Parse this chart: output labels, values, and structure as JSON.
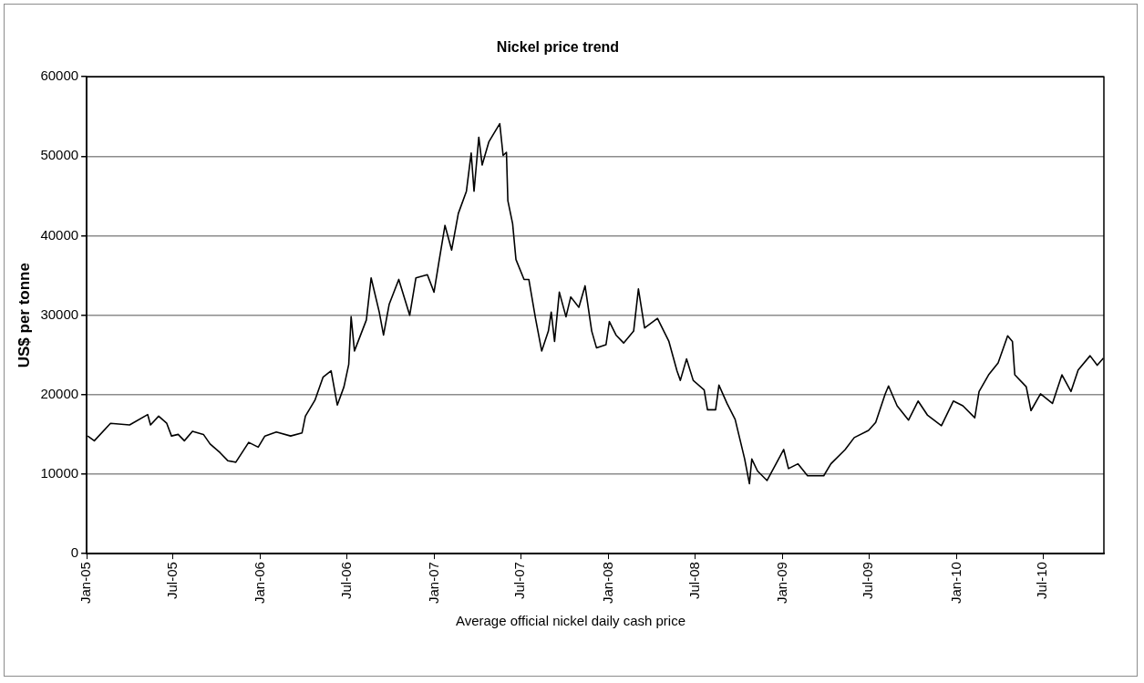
{
  "chart_data": {
    "type": "line",
    "title": "Nickel price trend",
    "ylabel": "US$ per tonne",
    "annotations": [
      "Average official nickel daily cash price"
    ],
    "xlim": [
      "2005-01-01",
      "2010-11-06"
    ],
    "xticks": [
      {
        "value": "2005-01-01",
        "label": "Jan-05"
      },
      {
        "value": "2005-07-01",
        "label": "Jul-05"
      },
      {
        "value": "2006-01-01",
        "label": "Jan-06"
      },
      {
        "value": "2006-07-01",
        "label": "Jul-06"
      },
      {
        "value": "2007-01-01",
        "label": "Jan-07"
      },
      {
        "value": "2007-07-01",
        "label": "Jul-07"
      },
      {
        "value": "2008-01-01",
        "label": "Jan-08"
      },
      {
        "value": "2008-07-01",
        "label": "Jul-08"
      },
      {
        "value": "2009-01-01",
        "label": "Jan-09"
      },
      {
        "value": "2009-07-01",
        "label": "Jul-09"
      },
      {
        "value": "2010-01-01",
        "label": "Jan-10"
      },
      {
        "value": "2010-07-01",
        "label": "Jul-10"
      }
    ],
    "ylim": [
      0,
      60000
    ],
    "yticks": [
      0,
      10000,
      20000,
      30000,
      40000,
      50000,
      60000
    ],
    "grid": "y",
    "x": [
      "2005-01-03",
      "2005-01-17",
      "2005-02-20",
      "2005-04-01",
      "2005-05-09",
      "2005-05-15",
      "2005-06-01",
      "2005-06-18",
      "2005-06-28",
      "2005-07-12",
      "2005-07-25",
      "2005-08-11",
      "2005-09-03",
      "2005-09-17",
      "2005-10-08",
      "2005-10-24",
      "2005-11-10",
      "2005-12-07",
      "2005-12-27",
      "2006-01-10",
      "2006-02-03",
      "2006-03-05",
      "2006-03-29",
      "2006-04-05",
      "2006-04-25",
      "2006-05-12",
      "2006-05-29",
      "2006-06-11",
      "2006-06-25",
      "2006-07-05",
      "2006-07-10",
      "2006-07-17",
      "2006-08-11",
      "2006-08-21",
      "2006-09-07",
      "2006-09-16",
      "2006-09-28",
      "2006-10-18",
      "2006-11-10",
      "2006-11-23",
      "2006-12-17",
      "2006-12-31",
      "2007-01-10",
      "2007-01-23",
      "2007-02-06",
      "2007-02-20",
      "2007-03-09",
      "2007-03-19",
      "2007-03-25",
      "2007-04-04",
      "2007-04-11",
      "2007-04-25",
      "2007-05-05",
      "2007-05-18",
      "2007-05-25",
      "2007-06-01",
      "2007-06-04",
      "2007-06-14",
      "2007-06-21",
      "2007-07-08",
      "2007-07-18",
      "2007-08-01",
      "2007-08-14",
      "2007-08-28",
      "2007-09-03",
      "2007-09-10",
      "2007-09-20",
      "2007-10-04",
      "2007-10-14",
      "2007-10-31",
      "2007-11-13",
      "2007-11-27",
      "2007-12-07",
      "2007-12-27",
      "2008-01-03",
      "2008-01-17",
      "2008-02-02",
      "2008-02-23",
      "2008-03-04",
      "2008-03-17",
      "2008-04-13",
      "2008-05-07",
      "2008-05-24",
      "2008-05-31",
      "2008-06-13",
      "2008-06-27",
      "2008-07-20",
      "2008-07-27",
      "2008-08-13",
      "2008-08-20",
      "2008-09-06",
      "2008-09-23",
      "2008-10-13",
      "2008-10-23",
      "2008-10-28",
      "2008-11-09",
      "2008-11-29",
      "2009-01-03",
      "2009-01-13",
      "2009-02-02",
      "2009-02-22",
      "2009-03-28",
      "2009-04-12",
      "2009-05-12",
      "2009-05-31",
      "2009-06-30",
      "2009-07-15",
      "2009-08-04",
      "2009-08-11",
      "2009-08-29",
      "2009-09-22",
      "2009-10-12",
      "2009-11-01",
      "2009-11-30",
      "2009-12-25",
      "2010-01-14",
      "2010-02-08",
      "2010-02-17",
      "2010-03-09",
      "2010-03-29",
      "2010-04-18",
      "2010-04-28",
      "2010-05-03",
      "2010-05-27",
      "2010-06-06",
      "2010-06-26",
      "2010-07-21",
      "2010-08-10",
      "2010-08-29",
      "2010-09-13",
      "2010-10-08",
      "2010-10-23",
      "2010-11-05"
    ],
    "series": [
      {
        "color": "#000000",
        "values": [
          14800,
          14200,
          16400,
          16200,
          17500,
          16200,
          17300,
          16400,
          14800,
          15000,
          14200,
          15400,
          15000,
          13800,
          12700,
          11700,
          11500,
          14000,
          13400,
          14800,
          15300,
          14800,
          15200,
          17300,
          19300,
          22200,
          23000,
          18700,
          21000,
          23800,
          29800,
          25500,
          29400,
          34700,
          30400,
          27500,
          31400,
          34500,
          30000,
          34700,
          35100,
          32900,
          36600,
          41300,
          38200,
          42800,
          45600,
          50400,
          45600,
          52400,
          48900,
          51800,
          52800,
          54100,
          50100,
          50500,
          44400,
          41500,
          37000,
          34500,
          34500,
          29600,
          25500,
          28000,
          30400,
          26700,
          32900,
          29800,
          32300,
          31000,
          33700,
          28000,
          25900,
          26300,
          29200,
          27500,
          26500,
          28000,
          33300,
          28400,
          29600,
          26700,
          23000,
          21800,
          24500,
          21800,
          20600,
          18100,
          18100,
          21200,
          18900,
          16900,
          11900,
          8800,
          11900,
          10400,
          9200,
          13100,
          10700,
          11300,
          9800,
          9800,
          11300,
          13100,
          14600,
          15500,
          16500,
          20100,
          21100,
          18600,
          16800,
          19200,
          17400,
          16100,
          19200,
          18600,
          17100,
          20400,
          22500,
          24000,
          27400,
          26700,
          22500,
          21000,
          18000,
          20100,
          18900,
          22500,
          20400,
          23100,
          24900,
          23700,
          24600
        ]
      }
    ]
  }
}
